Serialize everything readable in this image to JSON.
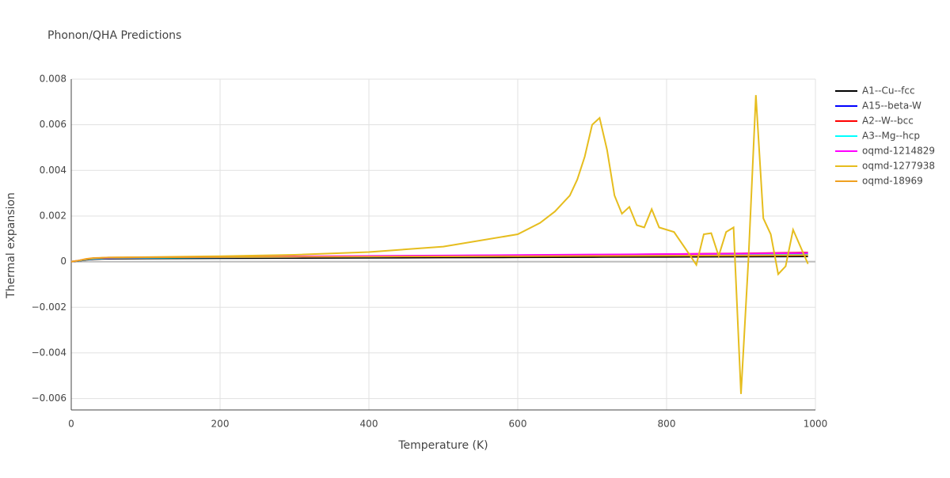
{
  "chart_data": {
    "type": "line",
    "title": "Phonon/QHA Predictions",
    "x_label": "Temperature (K)",
    "y_label": "Thermal expansion",
    "xlim": [
      0,
      1000
    ],
    "ylim": [
      -0.0065,
      0.008
    ],
    "xticks": [
      0,
      200,
      400,
      600,
      800,
      1000
    ],
    "yticks": [
      {
        "value": -0.006,
        "label": "−0.006"
      },
      {
        "value": -0.004,
        "label": "−0.004"
      },
      {
        "value": -0.002,
        "label": "−0.002"
      },
      0,
      0.002,
      0.004,
      0.006,
      0.008
    ],
    "grid": true,
    "legend": "right",
    "series": [
      {
        "name": "A1--Cu--fcc",
        "color": "#000000",
        "x": [
          0,
          10,
          20,
          30,
          50,
          100,
          200,
          300,
          400,
          500,
          600,
          700,
          800,
          900,
          990
        ],
        "values": [
          0,
          3e-05,
          8e-05,
          0.00011,
          0.00013,
          0.00014,
          0.00015,
          0.00016,
          0.00017,
          0.00018,
          0.00019,
          0.0002,
          0.00021,
          0.00022,
          0.00023
        ]
      },
      {
        "name": "A15--beta-W",
        "color": "#0000ff",
        "x": [
          0,
          10,
          20,
          30,
          50,
          100,
          200,
          300,
          400,
          500,
          600,
          700,
          800,
          900,
          990
        ],
        "values": [
          0,
          4e-05,
          0.0001,
          0.00013,
          0.00015,
          0.00017,
          0.00019,
          0.0002,
          0.00022,
          0.00023,
          0.00025,
          0.00027,
          0.00029,
          0.00031,
          0.00033
        ]
      },
      {
        "name": "A2--W--bcc",
        "color": "#ff0000",
        "x": [
          0,
          10,
          20,
          30,
          50,
          100,
          200,
          300,
          400,
          500,
          600,
          700,
          800,
          900,
          990
        ],
        "values": [
          0,
          4e-05,
          0.0001,
          0.00014,
          0.00016,
          0.00018,
          0.0002,
          0.00022,
          0.00024,
          0.00026,
          0.00028,
          0.0003,
          0.00033,
          0.00036,
          0.0004
        ]
      },
      {
        "name": "A3--Mg--hcp",
        "color": "#00ffff",
        "x": [
          0,
          10,
          20,
          30,
          50,
          100,
          200,
          300,
          400,
          500,
          600,
          700,
          800,
          900,
          990
        ],
        "values": [
          0,
          4e-05,
          0.0001,
          0.00013,
          0.00016,
          0.00017,
          0.00019,
          0.00021,
          0.00022,
          0.00024,
          0.00025,
          0.00027,
          0.00028,
          0.0003,
          0.00031
        ]
      },
      {
        "name": "oqmd-1214829",
        "color": "#ff00ff",
        "x": [
          0,
          10,
          20,
          30,
          50,
          100,
          200,
          300,
          400,
          500,
          600,
          700,
          800,
          900,
          990
        ],
        "values": [
          0,
          5e-05,
          0.00011,
          0.00015,
          0.00017,
          0.00019,
          0.00021,
          0.00023,
          0.00025,
          0.00027,
          0.00029,
          0.00031,
          0.00033,
          0.00035,
          0.00038
        ]
      },
      {
        "name": "oqmd-1277938",
        "color": "#e6bd1e",
        "x": [
          0,
          10,
          20,
          30,
          50,
          100,
          200,
          300,
          400,
          500,
          600,
          630,
          650,
          670,
          680,
          690,
          700,
          710,
          720,
          730,
          740,
          750,
          760,
          770,
          780,
          790,
          810,
          830,
          840,
          850,
          860,
          870,
          880,
          890,
          900,
          910,
          920,
          930,
          940,
          950,
          960,
          970,
          990
        ],
        "values": [
          0,
          5e-05,
          0.00011,
          0.00015,
          0.00018,
          0.0002,
          0.00024,
          0.0003,
          0.00042,
          0.00066,
          0.0012,
          0.0017,
          0.0022,
          0.0029,
          0.0036,
          0.0046,
          0.006,
          0.0063,
          0.0049,
          0.0029,
          0.0021,
          0.0024,
          0.0016,
          0.0015,
          0.0023,
          0.0015,
          0.0013,
          0.00035,
          -0.00014,
          0.0012,
          0.00125,
          0.00025,
          0.0013,
          0.0015,
          -0.0058,
          0.0001,
          0.0073,
          0.0019,
          0.0012,
          -0.00055,
          -0.0002,
          0.0014,
          -0.0001
        ]
      },
      {
        "name": "oqmd-18969",
        "color": "#f0a020",
        "x": [
          0,
          10,
          20,
          30,
          50,
          100,
          200,
          300,
          400,
          500,
          600,
          700,
          800,
          900,
          990
        ],
        "values": [
          0,
          5e-05,
          0.00012,
          0.00016,
          0.00018,
          0.00019,
          0.0002,
          0.00021,
          0.00022,
          0.00023,
          0.00024,
          0.00025,
          0.00026,
          0.00027,
          0.00028
        ]
      }
    ]
  }
}
